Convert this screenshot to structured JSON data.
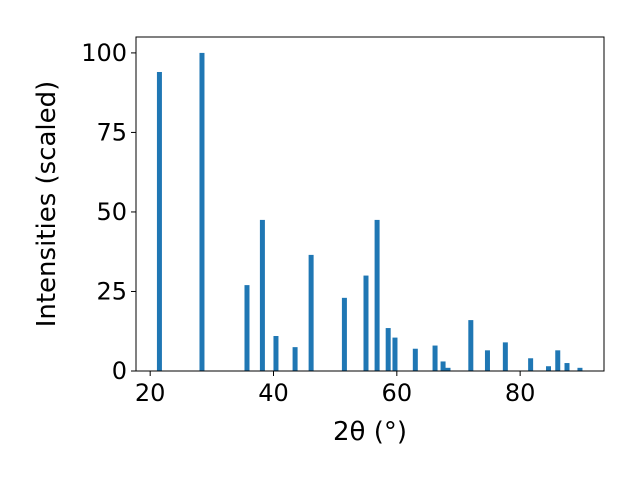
{
  "chart_data": {
    "type": "bar",
    "xlabel": "2θ (°)",
    "ylabel": "Intensities (scaled)",
    "color": "#1f77b4",
    "x": [
      21.5,
      28.4,
      35.7,
      38.2,
      40.4,
      43.5,
      46.1,
      51.5,
      55.0,
      56.8,
      58.6,
      59.7,
      63.0,
      66.2,
      67.5,
      68.3,
      72.0,
      74.7,
      77.6,
      81.7,
      84.6,
      86.1,
      87.6,
      89.7
    ],
    "values": [
      94,
      100,
      27,
      47.5,
      11,
      7.5,
      36.5,
      23,
      30,
      47.5,
      13.5,
      10.5,
      7,
      8,
      3,
      1,
      16,
      6.5,
      9,
      4,
      1.5,
      6.5,
      2.5,
      1
    ],
    "xlim": [
      17.7,
      93.6
    ],
    "xticks": [
      20,
      40,
      60,
      80
    ],
    "ylim": [
      0,
      105
    ],
    "yticks": [
      0,
      25,
      50,
      75,
      100
    ]
  }
}
